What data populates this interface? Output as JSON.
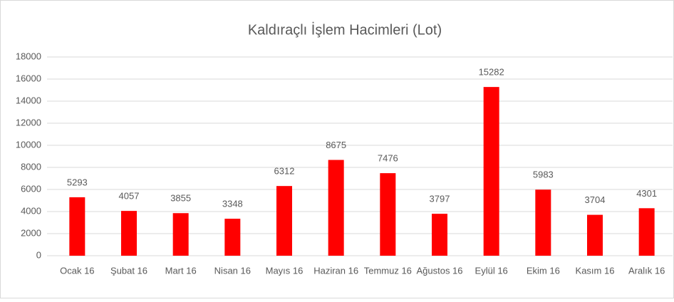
{
  "chart_data": {
    "type": "bar",
    "title": "Kaldıraçlı İşlem Hacimleri (Lot)",
    "categories": [
      "Ocak 16",
      "Şubat 16",
      "Mart 16",
      "Nisan 16",
      "Mayıs 16",
      "Haziran 16",
      "Temmuz 16",
      "Ağustos 16",
      "Eylül 16",
      "Ekim 16",
      "Kasım 16",
      "Aralık 16"
    ],
    "values": [
      5293,
      4057,
      3855,
      3348,
      6312,
      8675,
      7476,
      3797,
      15282,
      5983,
      3704,
      4301
    ],
    "color": "#ff0000",
    "ylim": [
      0,
      18000
    ],
    "yticks": [
      0,
      2000,
      4000,
      6000,
      8000,
      10000,
      12000,
      14000,
      16000,
      18000
    ],
    "grid": true
  }
}
